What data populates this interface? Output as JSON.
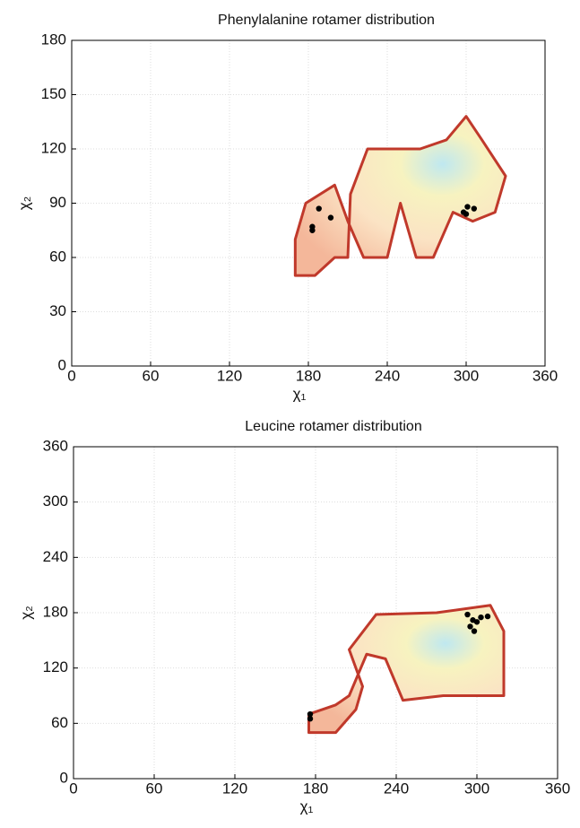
{
  "chart_data": [
    {
      "type": "contour",
      "title": "Phenylalanine rotamer distribution",
      "x_label": "χ₁",
      "y_label": "χ₂",
      "xlim": [
        0,
        360
      ],
      "ylim": [
        0,
        180
      ],
      "xticks": [
        0,
        60,
        120,
        180,
        240,
        300,
        360
      ],
      "yticks": [
        0,
        30,
        60,
        90,
        120,
        150,
        180
      ],
      "grid": true,
      "region": {
        "color": "#c0392b",
        "x": [
          170,
          185,
          200,
          210,
          212,
          225,
          265,
          285,
          300,
          312,
          330,
          322,
          305,
          290,
          275,
          262,
          250,
          240,
          222,
          210,
          200,
          178,
          170
        ],
        "y": [
          50,
          50,
          60,
          60,
          95,
          120,
          120,
          125,
          138,
          125,
          105,
          85,
          80,
          85,
          60,
          60,
          90,
          60,
          60,
          80,
          100,
          90,
          70
        ]
      },
      "points": {
        "color": "#000000",
        "x": [
          183,
          183,
          188,
          197,
          298,
          301,
          306,
          300
        ],
        "y": [
          77,
          75,
          87,
          82,
          85,
          88,
          87,
          84
        ]
      }
    },
    {
      "type": "contour",
      "title": "Leucine rotamer distribution",
      "x_label": "χ₁",
      "y_label": "χ₂",
      "xlim": [
        0,
        360
      ],
      "ylim": [
        0,
        360
      ],
      "xticks": [
        0,
        60,
        120,
        180,
        240,
        300,
        360
      ],
      "yticks": [
        0,
        60,
        120,
        180,
        240,
        300,
        360
      ],
      "grid": true,
      "region": {
        "color": "#c0392b",
        "x": [
          175,
          195,
          210,
          215,
          205,
          225,
          270,
          310,
          320,
          320,
          300,
          275,
          245,
          232,
          218,
          205,
          195,
          175
        ],
        "y": [
          50,
          50,
          75,
          100,
          140,
          178,
          180,
          188,
          160,
          90,
          90,
          90,
          85,
          130,
          135,
          90,
          80,
          70
        ]
      },
      "points": {
        "color": "#000000",
        "x": [
          176,
          176,
          295,
          297,
          300,
          303,
          308,
          293,
          298
        ],
        "y": [
          70,
          65,
          165,
          172,
          170,
          175,
          176,
          178,
          160
        ]
      }
    }
  ]
}
